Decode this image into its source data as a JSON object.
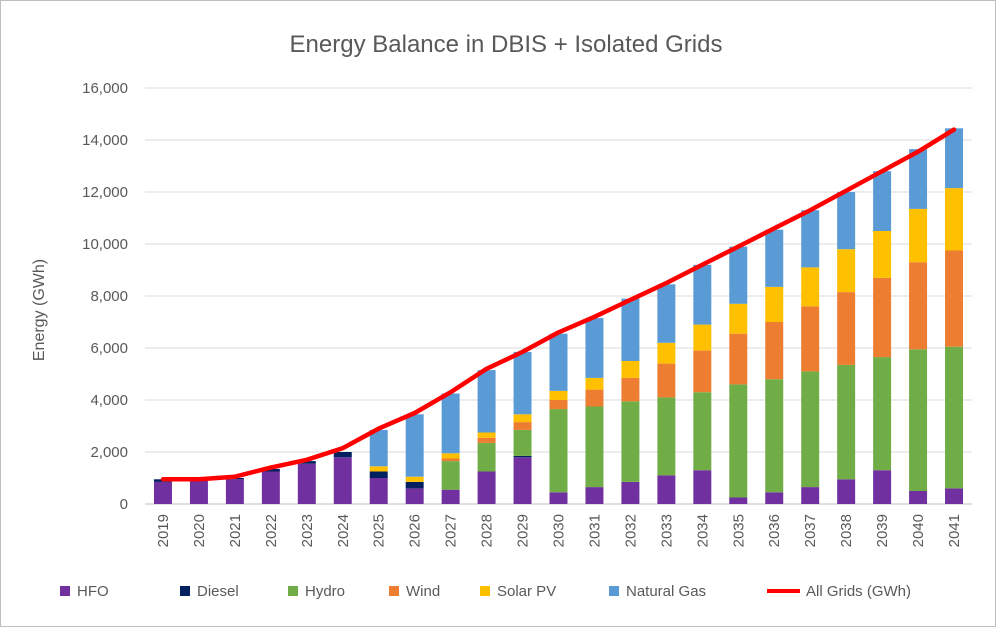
{
  "chart_data": {
    "type": "bar",
    "stacked": true,
    "title": "Energy Balance in DBIS + Isolated Grids",
    "xlabel": "",
    "ylabel": "Energy (GWh)",
    "ylim": [
      0,
      16000
    ],
    "yticks": [
      "0",
      "2,000",
      "4,000",
      "6,000",
      "8,000",
      "10,000",
      "12,000",
      "14,000",
      "16,000"
    ],
    "grid": true,
    "legend_position": "bottom",
    "categories": [
      "2019",
      "2020",
      "2021",
      "2022",
      "2023",
      "2024",
      "2025",
      "2026",
      "2027",
      "2028",
      "2029",
      "2030",
      "2031",
      "2032",
      "2033",
      "2034",
      "2035",
      "2036",
      "2037",
      "2038",
      "2039",
      "2040",
      "2041"
    ],
    "series": [
      {
        "name": "HFO",
        "color": "#7030a0",
        "values": [
          850,
          900,
          950,
          1250,
          1550,
          1800,
          1000,
          600,
          550,
          1250,
          1800,
          450,
          650,
          850,
          1100,
          1300,
          250,
          450,
          650,
          950,
          1300,
          500,
          600
        ]
      },
      {
        "name": "Diesel",
        "color": "#002060",
        "values": [
          100,
          50,
          50,
          100,
          100,
          200,
          250,
          250,
          0,
          0,
          50,
          0,
          0,
          0,
          0,
          0,
          0,
          0,
          0,
          0,
          0,
          0,
          0
        ]
      },
      {
        "name": "Hydro",
        "color": "#70ad47",
        "values": [
          0,
          0,
          0,
          0,
          0,
          0,
          0,
          0,
          1100,
          1100,
          1000,
          3200,
          3100,
          3100,
          3000,
          3000,
          4350,
          4350,
          4450,
          4400,
          4350,
          5450,
          5450
        ]
      },
      {
        "name": "Wind",
        "color": "#ed7d31",
        "values": [
          0,
          0,
          0,
          0,
          0,
          0,
          0,
          0,
          100,
          200,
          300,
          350,
          650,
          900,
          1300,
          1600,
          1950,
          2200,
          2500,
          2800,
          3050,
          3350,
          3700
        ]
      },
      {
        "name": "Solar PV",
        "color": "#ffc000",
        "values": [
          0,
          0,
          0,
          0,
          0,
          0,
          200,
          200,
          200,
          200,
          300,
          350,
          450,
          650,
          800,
          1000,
          1150,
          1350,
          1500,
          1650,
          1800,
          2050,
          2400
        ]
      },
      {
        "name": "Natural Gas",
        "color": "#5b9bd5",
        "values": [
          0,
          0,
          0,
          0,
          0,
          0,
          1400,
          2400,
          2300,
          2400,
          2400,
          2200,
          2300,
          2400,
          2250,
          2300,
          2200,
          2200,
          2200,
          2200,
          2300,
          2300,
          2300
        ]
      }
    ],
    "line_series": {
      "name": "All Grids (GWh)",
      "color": "#ff0000",
      "values": [
        950,
        950,
        1050,
        1400,
        1700,
        2150,
        2900,
        3500,
        4300,
        5200,
        5850,
        6600,
        7200,
        7850,
        8500,
        9200,
        9900,
        10600,
        11300,
        12050,
        12800,
        13550,
        14400
      ]
    }
  }
}
